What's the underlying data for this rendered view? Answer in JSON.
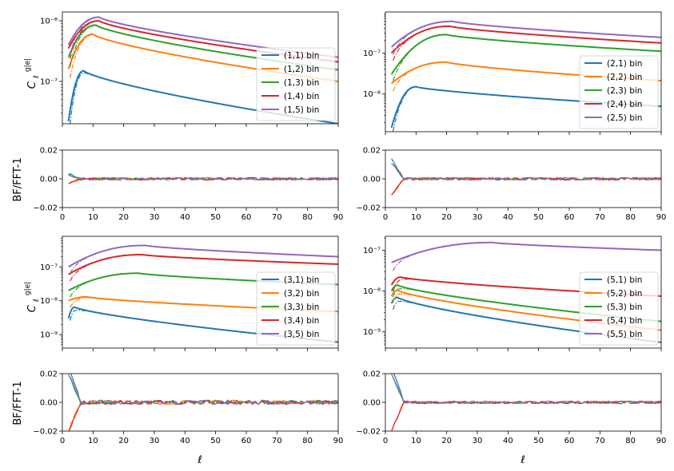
{
  "colors": {
    "bin1": "#1f77b4",
    "bin2": "#ff7f0e",
    "bin3": "#2ca02c",
    "bin4": "#d62728",
    "bin5": "#9467bd"
  },
  "ratio_ylabel": "BF/FFT-1",
  "cl_ylabel_main": "C",
  "cl_ylabel_sub": "ℓ",
  "cl_ylabel_sup": "g|e|",
  "xlabel": "ℓ",
  "chart_data": [
    {
      "type": "line",
      "id": "cl-row1-col1",
      "scale": "log",
      "xlim": [
        0,
        90
      ],
      "ylim": [
        2e-08,
        1.4e-06
      ],
      "xticks": [
        0,
        10,
        20,
        30,
        40,
        50,
        60,
        70,
        80,
        90
      ],
      "yticks": [
        {
          "v": 1e-07,
          "label": "10⁻⁷"
        },
        {
          "v": 1e-06,
          "label": "10⁻⁶"
        }
      ],
      "legend": {
        "position": "right",
        "entries": [
          "(1,1) bin",
          "(1,2) bin",
          "(1,3) bin",
          "(1,4) bin",
          "(1,5) bin"
        ]
      },
      "series": [
        {
          "name": "(1,1) bin",
          "color": "bin1",
          "peak_ell": 7,
          "peak": 1.5e-07,
          "end": 2e-08,
          "start": 2.2e-08
        },
        {
          "name": "(1,2) bin",
          "color": "bin2",
          "peak_ell": 10,
          "peak": 6e-07,
          "end": 1e-07,
          "start": 1.6e-07
        },
        {
          "name": "(1,3) bin",
          "color": "bin3",
          "peak_ell": 11,
          "peak": 8.5e-07,
          "end": 1.55e-07,
          "start": 2.5e-07
        },
        {
          "name": "(1,4) bin",
          "color": "bin4",
          "peak_ell": 12,
          "peak": 1e-06,
          "end": 2.1e-07,
          "start": 3.5e-07
        },
        {
          "name": "(1,5) bin",
          "color": "bin5",
          "peak_ell": 12,
          "peak": 1.15e-06,
          "end": 2.5e-07,
          "start": 4e-07
        }
      ]
    },
    {
      "type": "line",
      "id": "cl-row1-col2",
      "scale": "log",
      "xlim": [
        0,
        90
      ],
      "ylim": [
        1.2e-09,
        1e-06
      ],
      "xticks": [
        0,
        10,
        20,
        30,
        40,
        50,
        60,
        70,
        80,
        90
      ],
      "yticks": [
        {
          "v": 1e-08,
          "label": "10⁻⁸"
        },
        {
          "v": 1e-07,
          "label": "10⁻⁷"
        }
      ],
      "legend": {
        "position": "right",
        "entries": [
          "(2,1) bin",
          "(2,2) bin",
          "(2,3) bin",
          "(2,4) bin",
          "(2,5) bin"
        ]
      },
      "series": [
        {
          "name": "(2,1) bin",
          "color": "bin1",
          "peak_ell": 10,
          "peak": 1.5e-08,
          "end": 5e-09,
          "start": 1.5e-09
        },
        {
          "name": "(2,2) bin",
          "color": "bin2",
          "peak_ell": 20,
          "peak": 6e-08,
          "end": 2.1e-08,
          "start": 1.8e-08
        },
        {
          "name": "(2,3) bin",
          "color": "bin3",
          "peak_ell": 20,
          "peak": 2.8e-07,
          "end": 1.1e-07,
          "start": 3e-08
        },
        {
          "name": "(2,4) bin",
          "color": "bin4",
          "peak_ell": 21,
          "peak": 4.5e-07,
          "end": 1.75e-07,
          "start": 1e-07
        },
        {
          "name": "(2,5) bin",
          "color": "bin5",
          "peak_ell": 22,
          "peak": 5.9e-07,
          "end": 2.4e-07,
          "start": 1.4e-07
        }
      ]
    },
    {
      "type": "line",
      "id": "cl-row2-col1",
      "scale": "log",
      "xlim": [
        0,
        90
      ],
      "ylim": [
        4e-10,
        8e-07
      ],
      "xticks": [
        0,
        10,
        20,
        30,
        40,
        50,
        60,
        70,
        80,
        90
      ],
      "yticks": [
        {
          "v": 1e-09,
          "label": "10⁻⁹"
        },
        {
          "v": 1e-08,
          "label": "10⁻⁸"
        },
        {
          "v": 1e-07,
          "label": "10⁻⁷"
        }
      ],
      "legend": {
        "position": "right",
        "entries": [
          "(3,1) bin",
          "(3,2) bin",
          "(3,3) bin",
          "(3,4) bin",
          "(3,5) bin"
        ]
      },
      "series": [
        {
          "name": "(3,1) bin",
          "color": "bin1",
          "peak_ell": 4,
          "peak": 6.5e-09,
          "end": 6e-10,
          "start": 3e-09
        },
        {
          "name": "(3,2) bin",
          "color": "bin2",
          "peak_ell": 8,
          "peak": 1.3e-08,
          "end": 4.8e-09,
          "start": 1e-08
        },
        {
          "name": "(3,3) bin",
          "color": "bin3",
          "peak_ell": 25,
          "peak": 6.5e-08,
          "end": 3e-08,
          "start": 2e-08
        },
        {
          "name": "(3,4) bin",
          "color": "bin4",
          "peak_ell": 26,
          "peak": 2.3e-07,
          "end": 1.2e-07,
          "start": 6e-08
        },
        {
          "name": "(3,5) bin",
          "color": "bin5",
          "peak_ell": 27,
          "peak": 4.3e-07,
          "end": 2e-07,
          "start": 1e-07
        }
      ]
    },
    {
      "type": "line",
      "id": "cl-row2-col2",
      "scale": "log",
      "xlim": [
        0,
        90
      ],
      "ylim": [
        4e-10,
        2.2e-07
      ],
      "xticks": [
        0,
        10,
        20,
        30,
        40,
        50,
        60,
        70,
        80,
        90
      ],
      "yticks": [
        {
          "v": 1e-09,
          "label": "10⁻⁹"
        },
        {
          "v": 1e-08,
          "label": "10⁻⁸"
        },
        {
          "v": 1e-07,
          "label": "10⁻⁷"
        }
      ],
      "legend": {
        "position": "right",
        "entries": [
          "(5,1) bin",
          "(5,2) bin",
          "(5,3) bin",
          "(5,4) bin",
          "(5,5) bin"
        ]
      },
      "series": [
        {
          "name": "(5,1) bin",
          "color": "bin1",
          "peak_ell": 4,
          "peak": 7e-09,
          "end": 5.5e-10,
          "start": 5e-09
        },
        {
          "name": "(5,2) bin",
          "color": "bin2",
          "peak_ell": 4,
          "peak": 1.05e-08,
          "end": 1.1e-09,
          "start": 7.5e-09
        },
        {
          "name": "(5,3) bin",
          "color": "bin3",
          "peak_ell": 4,
          "peak": 1.4e-08,
          "end": 1.8e-09,
          "start": 1e-08
        },
        {
          "name": "(5,4) bin",
          "color": "bin4",
          "peak_ell": 5,
          "peak": 2.2e-08,
          "end": 7.5e-09,
          "start": 1.4e-08
        },
        {
          "name": "(5,5) bin",
          "color": "bin5",
          "peak_ell": 35,
          "peak": 1.55e-07,
          "end": 1e-07,
          "start": 5e-08
        }
      ]
    },
    {
      "type": "line",
      "id": "ratio-row1-col1",
      "scale": "linear",
      "xlim": [
        0,
        90
      ],
      "ylim": [
        -0.02,
        0.02
      ],
      "xticks": [
        0,
        10,
        20,
        30,
        40,
        50,
        60,
        70,
        80,
        90
      ],
      "yticks": [
        {
          "v": -0.02,
          "label": "−0.02"
        },
        {
          "v": 0,
          "label": "0.00"
        },
        {
          "v": 0.02,
          "label": "0.02"
        }
      ],
      "noise_amplitude": 0.0015,
      "low_ell_spike": 0.003
    },
    {
      "type": "line",
      "id": "ratio-row1-col2",
      "scale": "linear",
      "xlim": [
        0,
        90
      ],
      "ylim": [
        -0.02,
        0.02
      ],
      "xticks": [
        0,
        10,
        20,
        30,
        40,
        50,
        60,
        70,
        80,
        90
      ],
      "yticks": [
        {
          "v": -0.02,
          "label": "−0.02"
        },
        {
          "v": 0,
          "label": "0.00"
        },
        {
          "v": 0.02,
          "label": "0.02"
        }
      ],
      "noise_amplitude": 0.0015,
      "low_ell_spike": 0.011
    },
    {
      "type": "line",
      "id": "ratio-row2-col1",
      "scale": "linear",
      "xlim": [
        0,
        90
      ],
      "ylim": [
        -0.02,
        0.02
      ],
      "xticks": [
        0,
        10,
        20,
        30,
        40,
        50,
        60,
        70,
        80,
        90
      ],
      "yticks": [
        {
          "v": -0.02,
          "label": "−0.02"
        },
        {
          "v": 0,
          "label": "0.00"
        },
        {
          "v": 0.02,
          "label": "0.02"
        }
      ],
      "noise_amplitude": 0.0025,
      "low_ell_spike": 0.02
    },
    {
      "type": "line",
      "id": "ratio-row2-col2",
      "scale": "linear",
      "xlim": [
        0,
        90
      ],
      "ylim": [
        -0.02,
        0.02
      ],
      "xticks": [
        0,
        10,
        20,
        30,
        40,
        50,
        60,
        70,
        80,
        90
      ],
      "yticks": [
        {
          "v": -0.02,
          "label": "−0.02"
        },
        {
          "v": 0,
          "label": "0.00"
        },
        {
          "v": 0.02,
          "label": "0.02"
        }
      ],
      "noise_amplitude": 0.0015,
      "low_ell_spike": 0.02
    }
  ]
}
